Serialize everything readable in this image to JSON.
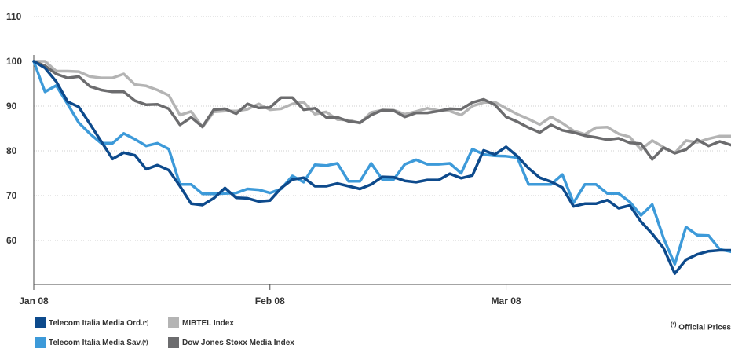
{
  "chart_data": {
    "type": "line",
    "y_ticks": [
      60,
      70,
      80,
      90,
      100,
      110
    ],
    "ylim": [
      50,
      110
    ],
    "x_ticks": [
      {
        "index": 0,
        "label": "Jan 08"
      },
      {
        "index": 21,
        "label": "Feb 08"
      },
      {
        "index": 42,
        "label": "Mar 08"
      }
    ],
    "grid": true,
    "legend_placement": "bottom",
    "series": [
      {
        "name": "Telecom Italia Media Ord.",
        "sup": "(*)",
        "color": "#0d4a8c",
        "values": [
          100,
          98.5,
          95.5,
          91,
          89.8,
          86,
          82.1,
          78.2,
          79.6,
          79,
          75.9,
          76.8,
          75.7,
          72.1,
          68.2,
          67.9,
          69.4,
          71.7,
          69.5,
          69.4,
          68.7,
          68.9,
          71.7,
          73.6,
          74,
          72.1,
          72.1,
          72.7,
          72.1,
          71.5,
          72.5,
          74.2,
          74.1,
          73.3,
          73,
          73.5,
          73.5,
          74.9,
          73.9,
          74.5,
          80.1,
          79.2,
          80.9,
          78.8,
          76.1,
          74,
          73.1,
          71.8,
          67.6,
          68.2,
          68.2,
          69,
          67.2,
          67.8,
          64.2,
          61.5,
          58.3,
          52.6,
          55.7,
          56.9,
          57.6,
          57.8,
          57.8
        ]
      },
      {
        "name": "Telecom Italia Media Sav.",
        "sup": "(*)",
        "color": "#3d9ad9",
        "values": [
          100,
          93.2,
          94.6,
          90.5,
          86.3,
          83.8,
          81.7,
          81.7,
          83.9,
          82.6,
          81.1,
          81.7,
          80.4,
          72.5,
          72.5,
          70.4,
          70.4,
          70.5,
          70.6,
          71.5,
          71.3,
          70.6,
          71.5,
          74.4,
          73,
          76.9,
          76.7,
          77.2,
          73.2,
          73.2,
          77.2,
          73.6,
          73.6,
          77,
          78,
          77,
          77,
          77.2,
          75,
          80.4,
          79.2,
          78.9,
          78.8,
          78.5,
          72.5,
          72.5,
          72.5,
          74.7,
          68.4,
          72.5,
          72.5,
          70.5,
          70.5,
          68.6,
          65.6,
          68,
          60.5,
          54.7,
          63,
          61.2,
          61.1,
          58,
          57.5
        ]
      },
      {
        "name": "MIBTEL Index",
        "sup": "",
        "color": "#b4b4b4",
        "values": [
          100,
          100,
          97.8,
          97.8,
          97.7,
          96.6,
          96.3,
          96.3,
          97.2,
          94.8,
          94.5,
          93.6,
          92.4,
          88,
          88.8,
          85.3,
          88.7,
          88.9,
          88.9,
          89.3,
          90.5,
          89.2,
          89.4,
          90.5,
          90.9,
          88.2,
          88.7,
          87,
          86.9,
          86.2,
          88.6,
          89.1,
          89.1,
          88.2,
          88.8,
          89.5,
          89,
          88.9,
          88,
          90,
          90.8,
          90.9,
          89.5,
          88.2,
          87.1,
          85.9,
          87.6,
          86.2,
          84.5,
          83.7,
          85.2,
          85.3,
          83.8,
          83.1,
          80.3,
          82.3,
          80.8,
          79.5,
          82.3,
          81.9,
          82.7,
          83.3,
          83.3
        ]
      },
      {
        "name": "Dow Jones Stoxx Media Index",
        "sup": "",
        "color": "#6c6c6e",
        "values": [
          100,
          99,
          97.2,
          96.3,
          96.6,
          94.4,
          93.6,
          93.2,
          93.2,
          91.2,
          90.3,
          90.4,
          89.4,
          85.8,
          87.5,
          85.4,
          89.2,
          89.4,
          88.3,
          90.5,
          89.6,
          89.7,
          91.9,
          91.9,
          89.2,
          89.5,
          87.5,
          87.5,
          86.6,
          86.3,
          88,
          89.1,
          89,
          87.6,
          88.5,
          88.5,
          88.9,
          89.4,
          89.3,
          90.8,
          91.5,
          90.3,
          87.6,
          86.5,
          85.2,
          84.1,
          85.8,
          84.6,
          84.1,
          83.4,
          83,
          82.5,
          82.8,
          81.8,
          81.6,
          78.1,
          80.7,
          79.5,
          80.3,
          82.5,
          81.1,
          82.1,
          81.3
        ]
      }
    ]
  },
  "legend": {
    "items": [
      {
        "label": "Telecom Italia Media Ord.",
        "sup": "(*)",
        "color": "#0d4a8c"
      },
      {
        "label": "MIBTEL Index",
        "sup": "",
        "color": "#b4b4b4"
      },
      {
        "label": "Telecom Italia Media Sav.",
        "sup": "(*)",
        "color": "#3d9ad9"
      },
      {
        "label": "Dow Jones Stoxx Media Index",
        "sup": "",
        "color": "#6c6c6e"
      }
    ]
  },
  "footnote": {
    "sup": "(*)",
    "text": " Official Prices"
  }
}
